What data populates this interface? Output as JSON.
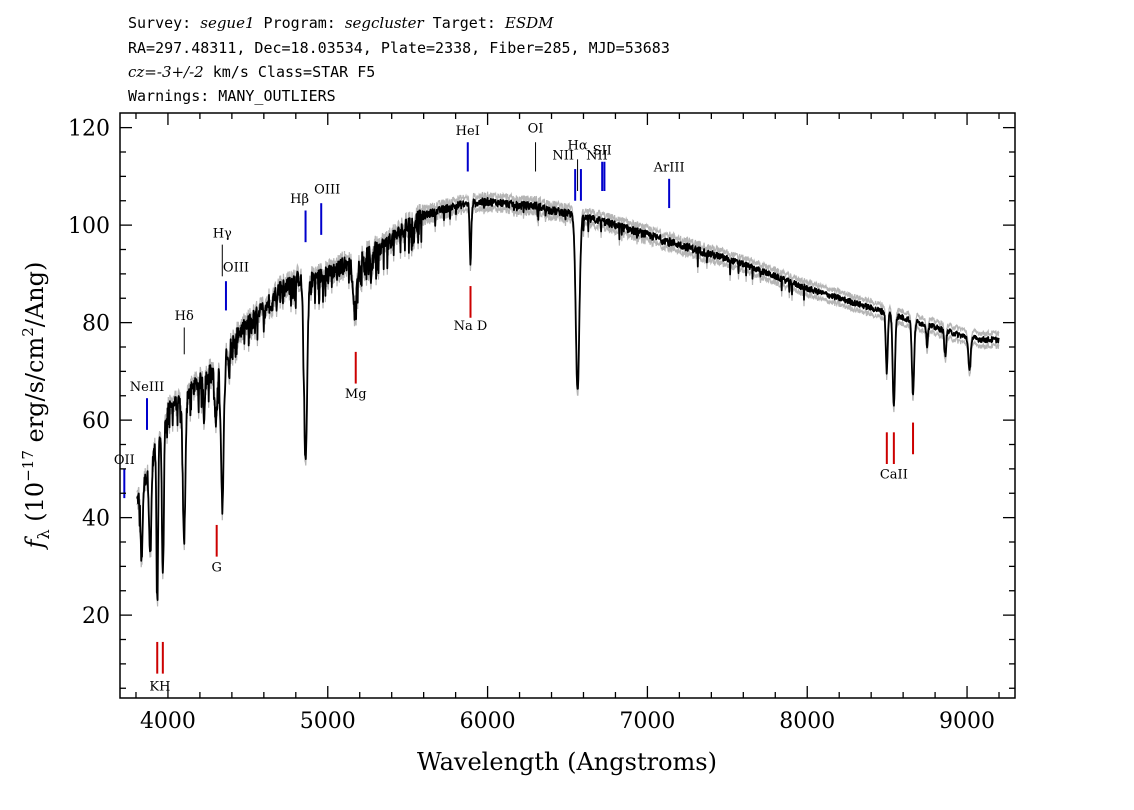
{
  "header": {
    "line1": [
      {
        "text": "Survey: ",
        "style": "mono"
      },
      {
        "text": "segue1",
        "style": "italic"
      },
      {
        "text": " Program: ",
        "style": "mono"
      },
      {
        "text": "segcluster",
        "style": "italic"
      },
      {
        "text": " Target: ",
        "style": "mono"
      },
      {
        "text": "ESDM",
        "style": "italic"
      }
    ],
    "line2": "RA=297.48311, Dec=18.03534, Plate=2338, Fiber=285, MJD=53683",
    "line3": [
      {
        "text": "cz=-3+/-2",
        "style": "italic"
      },
      {
        "text": " km/s Class=STAR F5",
        "style": "mono"
      }
    ],
    "line4": "Warnings: MANY_OUTLIERS"
  },
  "chart_data": {
    "type": "line",
    "xlabel": "Wavelength (Angstroms)",
    "ylabel": "f_λ (10^-17 erg/s/cm^2/Ang)",
    "ylabel_parts": {
      "flambda": "f",
      "sub": "λ",
      "open": " (10",
      "exp1": "−17",
      "mid": " erg/s/cm",
      "exp2": "2",
      "close": "/Ang)"
    },
    "xlim": [
      3700,
      9300
    ],
    "ylim": [
      3,
      123
    ],
    "xticks": [
      4000,
      5000,
      6000,
      7000,
      8000,
      9000
    ],
    "yticks": [
      20,
      40,
      60,
      80,
      100,
      120
    ],
    "series_color": "#000000",
    "error_color": "#b5b5b5",
    "continuum": {
      "x": [
        3800,
        3850,
        3900,
        4000,
        4100,
        4200,
        4300,
        4400,
        4500,
        4600,
        4700,
        4800,
        4900,
        5000,
        5100,
        5200,
        5300,
        5400,
        5500,
        5600,
        5700,
        5800,
        5900,
        6000,
        6100,
        6200,
        6300,
        6400,
        6500,
        6600,
        6700,
        6800,
        6900,
        7000,
        7200,
        7400,
        7600,
        7800,
        8000,
        8200,
        8400,
        8600,
        8800,
        9000,
        9100,
        9200
      ],
      "y": [
        43,
        47,
        52,
        62,
        65,
        68,
        71,
        76,
        80,
        83,
        87,
        89,
        89,
        90,
        92,
        93,
        95,
        97,
        100,
        102,
        103,
        104,
        104.5,
        104.8,
        104.5,
        104,
        104,
        103,
        102.5,
        101.5,
        101,
        100,
        99,
        98,
        96,
        94,
        92,
        89.5,
        87,
        85,
        83,
        81,
        79,
        77,
        76.5,
        76.5
      ]
    },
    "absorption": [
      {
        "x": 3835,
        "depth": 15,
        "width": 6
      },
      {
        "x": 3889,
        "depth": 18,
        "width": 7
      },
      {
        "x": 3933,
        "depth": 32,
        "width": 5
      },
      {
        "x": 3968,
        "depth": 30,
        "width": 6
      },
      {
        "x": 4101,
        "depth": 30,
        "width": 8
      },
      {
        "x": 4226,
        "depth": 8,
        "width": 4
      },
      {
        "x": 4300,
        "depth": 12,
        "width": 8
      },
      {
        "x": 4340,
        "depth": 30,
        "width": 9
      },
      {
        "x": 4383,
        "depth": 6,
        "width": 4
      },
      {
        "x": 4861,
        "depth": 37,
        "width": 10
      },
      {
        "x": 5170,
        "depth": 10,
        "width": 12
      },
      {
        "x": 5270,
        "depth": 5,
        "width": 4
      },
      {
        "x": 5893,
        "depth": 12,
        "width": 5
      },
      {
        "x": 6563,
        "depth": 36,
        "width": 11
      },
      {
        "x": 8498,
        "depth": 12,
        "width": 6
      },
      {
        "x": 8542,
        "depth": 19,
        "width": 7
      },
      {
        "x": 8662,
        "depth": 15,
        "width": 7
      },
      {
        "x": 8750,
        "depth": 4,
        "width": 5
      },
      {
        "x": 8863,
        "depth": 5,
        "width": 6
      },
      {
        "x": 9015,
        "depth": 7,
        "width": 7
      }
    ],
    "line_markers": [
      {
        "label": "OII",
        "x": 3727,
        "y_top": 50,
        "y_bottom": 44,
        "color": "#0000cc",
        "label_y": 51
      },
      {
        "label": "NeIII",
        "x": 3869,
        "y_top": 64.5,
        "y_bottom": 58,
        "color": "#0000cc",
        "label_y": 66
      },
      {
        "label": "Hδ",
        "x": 4102,
        "y_top": 79,
        "y_bottom": 73.5,
        "color": "#000000",
        "label_y": 80.5
      },
      {
        "label": "Hγ",
        "x": 4340,
        "y_top": 96,
        "y_bottom": 89.5,
        "color": "#000000",
        "label_y": 97.5
      },
      {
        "label": "OIII",
        "x": 4363,
        "y_top": 88.5,
        "y_bottom": 82.5,
        "color": "#0000cc",
        "label_y": 90.5
      },
      {
        "label": "Hβ",
        "x": 4861,
        "y_top": 103,
        "y_bottom": 96.5,
        "color": "#0000cc",
        "label_y": 104.5
      },
      {
        "label": "OIII",
        "x": 4959,
        "y_top": 104.5,
        "y_bottom": 98,
        "color": "#0000cc",
        "label_y": 106.5
      },
      {
        "label": "HeI",
        "x": 5876,
        "y_top": 117,
        "y_bottom": 111,
        "color": "#0000cc",
        "label_y": 118.5
      },
      {
        "label": "OI",
        "x": 6300,
        "y_top": 117,
        "y_bottom": 111,
        "color": "#000000",
        "label_y": 119
      },
      {
        "label": "NII",
        "x": 6548,
        "y_top": 111.5,
        "y_bottom": 105,
        "color": "#0000cc",
        "label_y": 113.5
      },
      {
        "label": "Hα",
        "x": 6563,
        "y_top": 113.5,
        "y_bottom": 107,
        "color": "#000000",
        "label_y": 115.5
      },
      {
        "label": "NII",
        "x": 6584,
        "y_top": 111.5,
        "y_bottom": 105,
        "color": "#0000cc",
        "label_y": 113.5
      },
      {
        "label": "SII",
        "x": 6717,
        "y_top": 113,
        "y_bottom": 107,
        "color": "#0000cc",
        "label_y": 114.5
      },
      {
        "label": "ArIII",
        "x": 7136,
        "y_top": 109.5,
        "y_bottom": 103.5,
        "color": "#0000cc",
        "label_y": 111
      },
      {
        "label": "Na D",
        "x": 5893,
        "y_top": 87.5,
        "y_bottom": 81,
        "color": "#cc0000",
        "label_y": 78.5
      },
      {
        "label": "Mg",
        "x": 5175,
        "y_top": 74,
        "y_bottom": 67.5,
        "color": "#cc0000",
        "label_y": 64.5
      },
      {
        "label": "G",
        "x": 4305,
        "y_top": 38.5,
        "y_bottom": 32,
        "color": "#cc0000",
        "label_y": 29
      },
      {
        "label": "KH",
        "x": 3950,
        "y_top": 14.5,
        "y_bottom": 8,
        "color": "#cc0000",
        "label_y": 4.5
      },
      {
        "label": "CaII",
        "x": 8542,
        "y_top": 57.5,
        "y_bottom": 51,
        "color": "#cc0000",
        "label_y": 48
      }
    ]
  }
}
